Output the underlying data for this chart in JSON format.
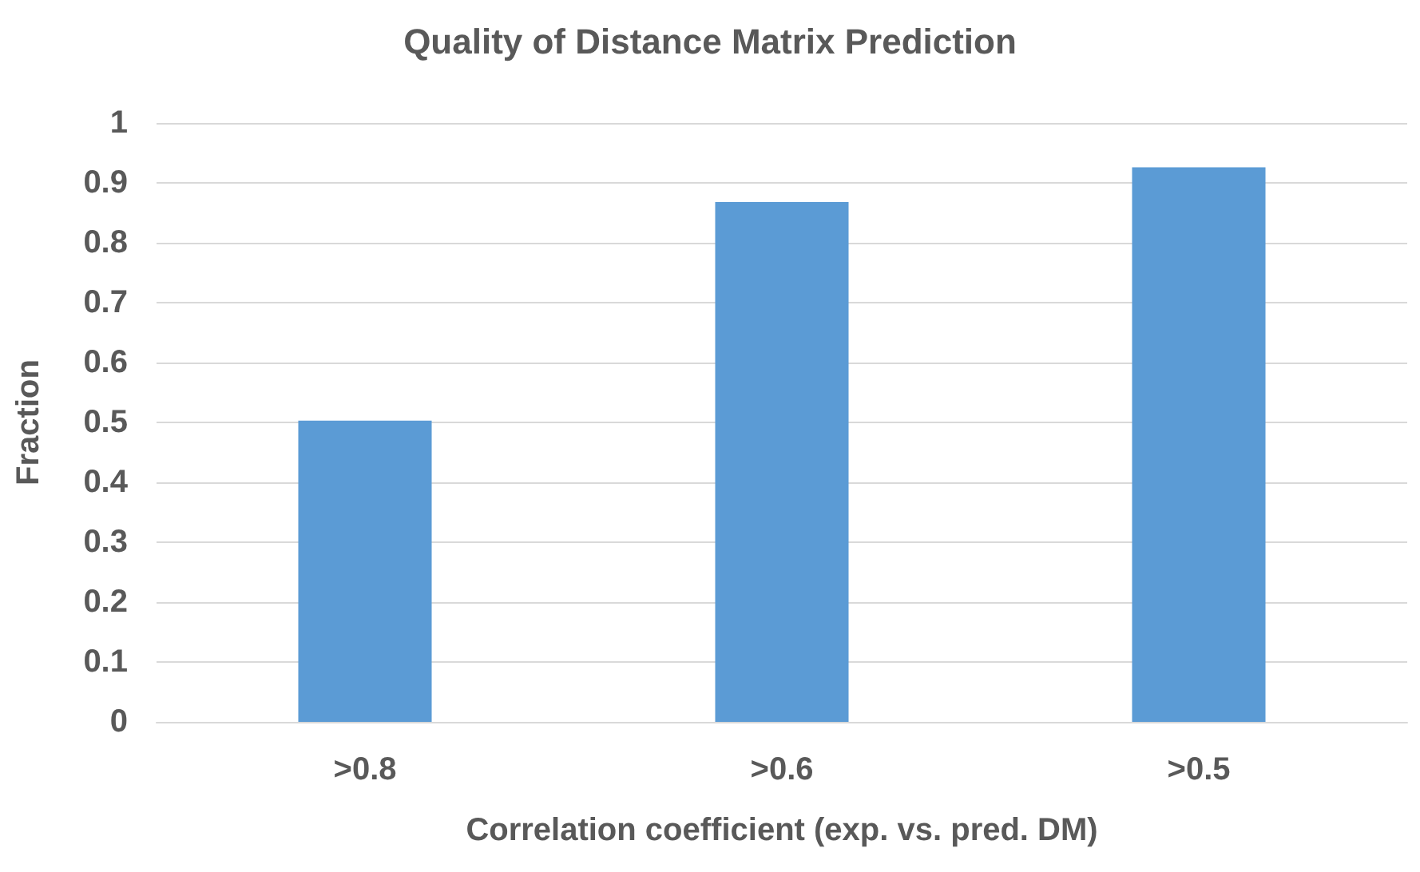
{
  "chart_data": {
    "type": "bar",
    "title": "Quality of Distance Matrix Prediction",
    "xlabel": "Correlation coefficient (exp. vs. pred. DM)",
    "ylabel": "Fraction",
    "categories": [
      ">0.8",
      ">0.6",
      ">0.5"
    ],
    "values": [
      0.503,
      0.868,
      0.926
    ],
    "color": "#5b9bd5",
    "ylim": [
      0,
      1
    ],
    "yticks": [
      0,
      0.1,
      0.2,
      0.3,
      0.4,
      0.5,
      0.6,
      0.7,
      0.8,
      0.9,
      1
    ],
    "grid": "y"
  }
}
